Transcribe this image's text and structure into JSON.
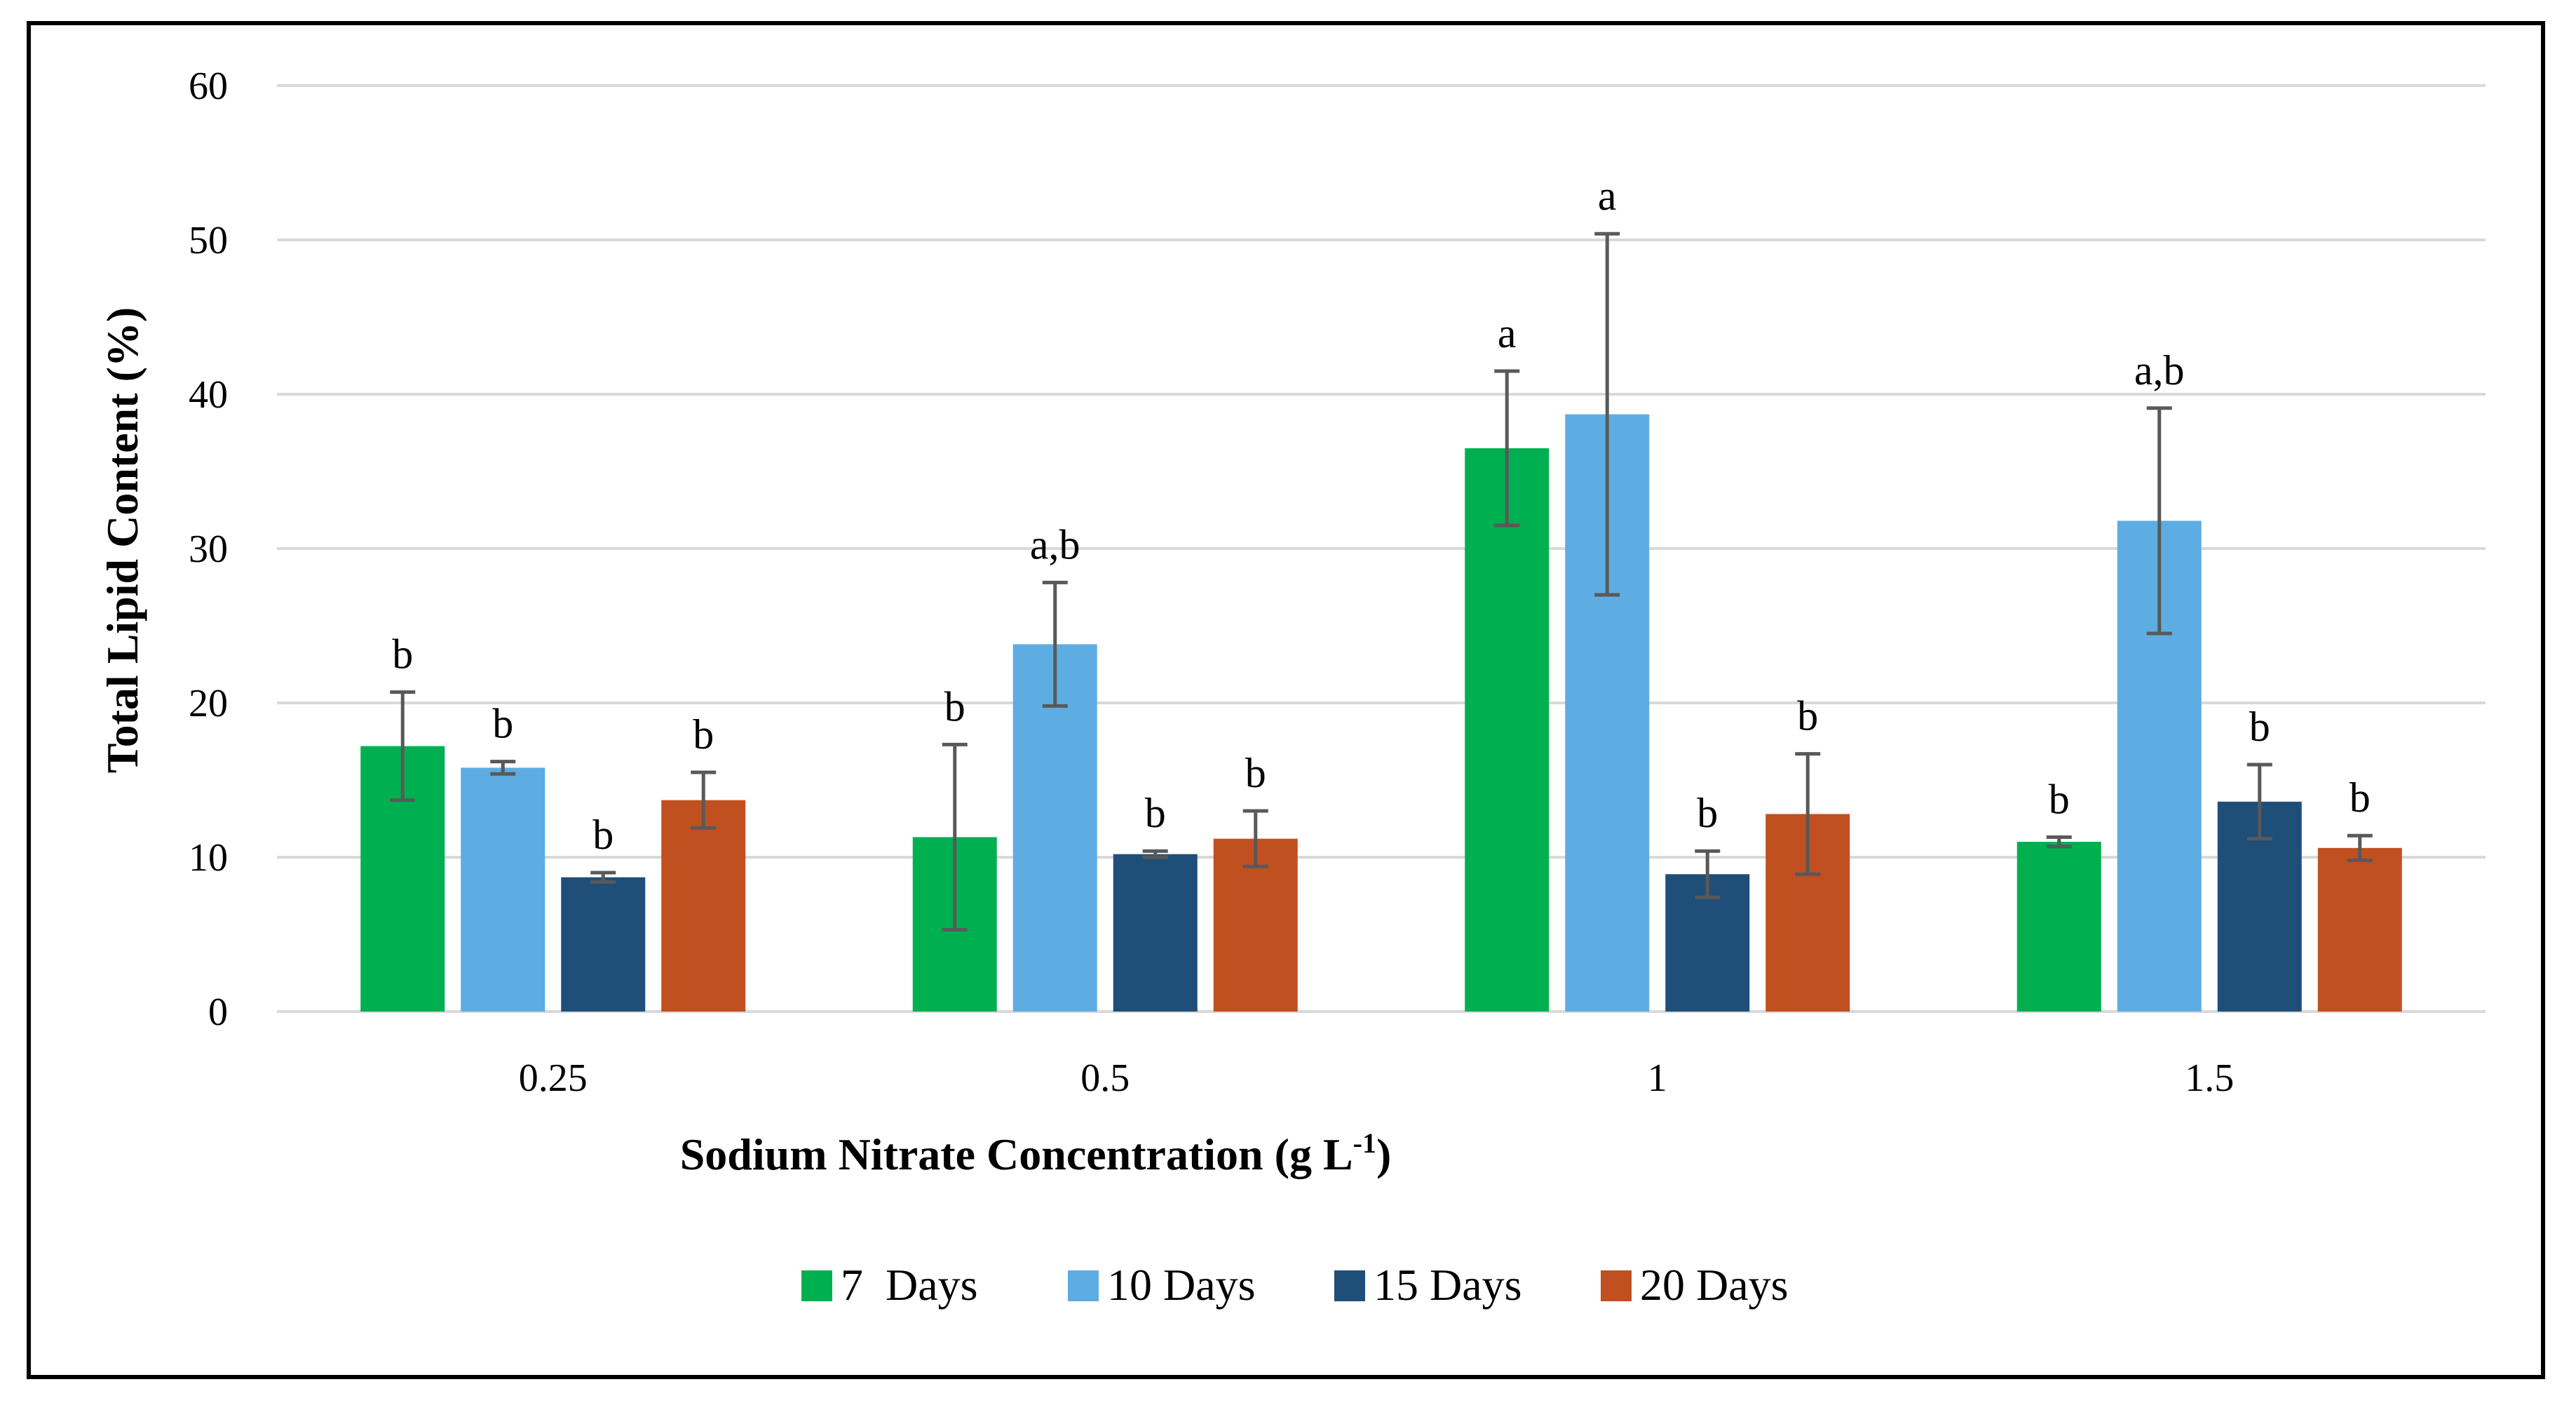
{
  "chart_data": {
    "type": "bar",
    "title": "",
    "xlabel": "Sodium Nitrate Concentration (g L",
    "xlabel_superscript": "-1",
    "xlabel_suffix": ")",
    "ylabel": "Total Lipid Content (%)",
    "ylim": [
      0,
      60
    ],
    "yticks": [
      "0",
      "10",
      "20",
      "30",
      "40",
      "50",
      "60"
    ],
    "grid": true,
    "legend_position": "bottom",
    "categories": [
      "0.25",
      "0.5",
      "1",
      "1.5"
    ],
    "series": [
      {
        "name": "7  Days",
        "color": "#00b050",
        "values": [
          17.2,
          11.3,
          36.5,
          11.0
        ],
        "errors": [
          3.5,
          6.0,
          5.0,
          0.3
        ],
        "labels": [
          "b",
          "b",
          "a",
          "b"
        ]
      },
      {
        "name": "10 Days",
        "color": "#5dade2",
        "values": [
          15.8,
          23.8,
          38.7,
          31.8
        ],
        "errors": [
          0.4,
          4.0,
          11.7,
          7.3
        ],
        "labels": [
          "b",
          "a,b",
          "a",
          "a,b"
        ]
      },
      {
        "name": "15 Days",
        "color": "#1f4e79",
        "values": [
          8.7,
          10.2,
          8.9,
          13.6
        ],
        "errors": [
          0.3,
          0.2,
          1.5,
          2.4
        ],
        "labels": [
          "b",
          "b",
          "b",
          "b"
        ]
      },
      {
        "name": "20 Days",
        "color": "#c0501f",
        "values": [
          13.7,
          11.2,
          12.8,
          10.6
        ],
        "errors": [
          1.8,
          1.8,
          3.9,
          0.8
        ],
        "labels": [
          "b",
          "b",
          "b",
          "b"
        ]
      }
    ]
  }
}
